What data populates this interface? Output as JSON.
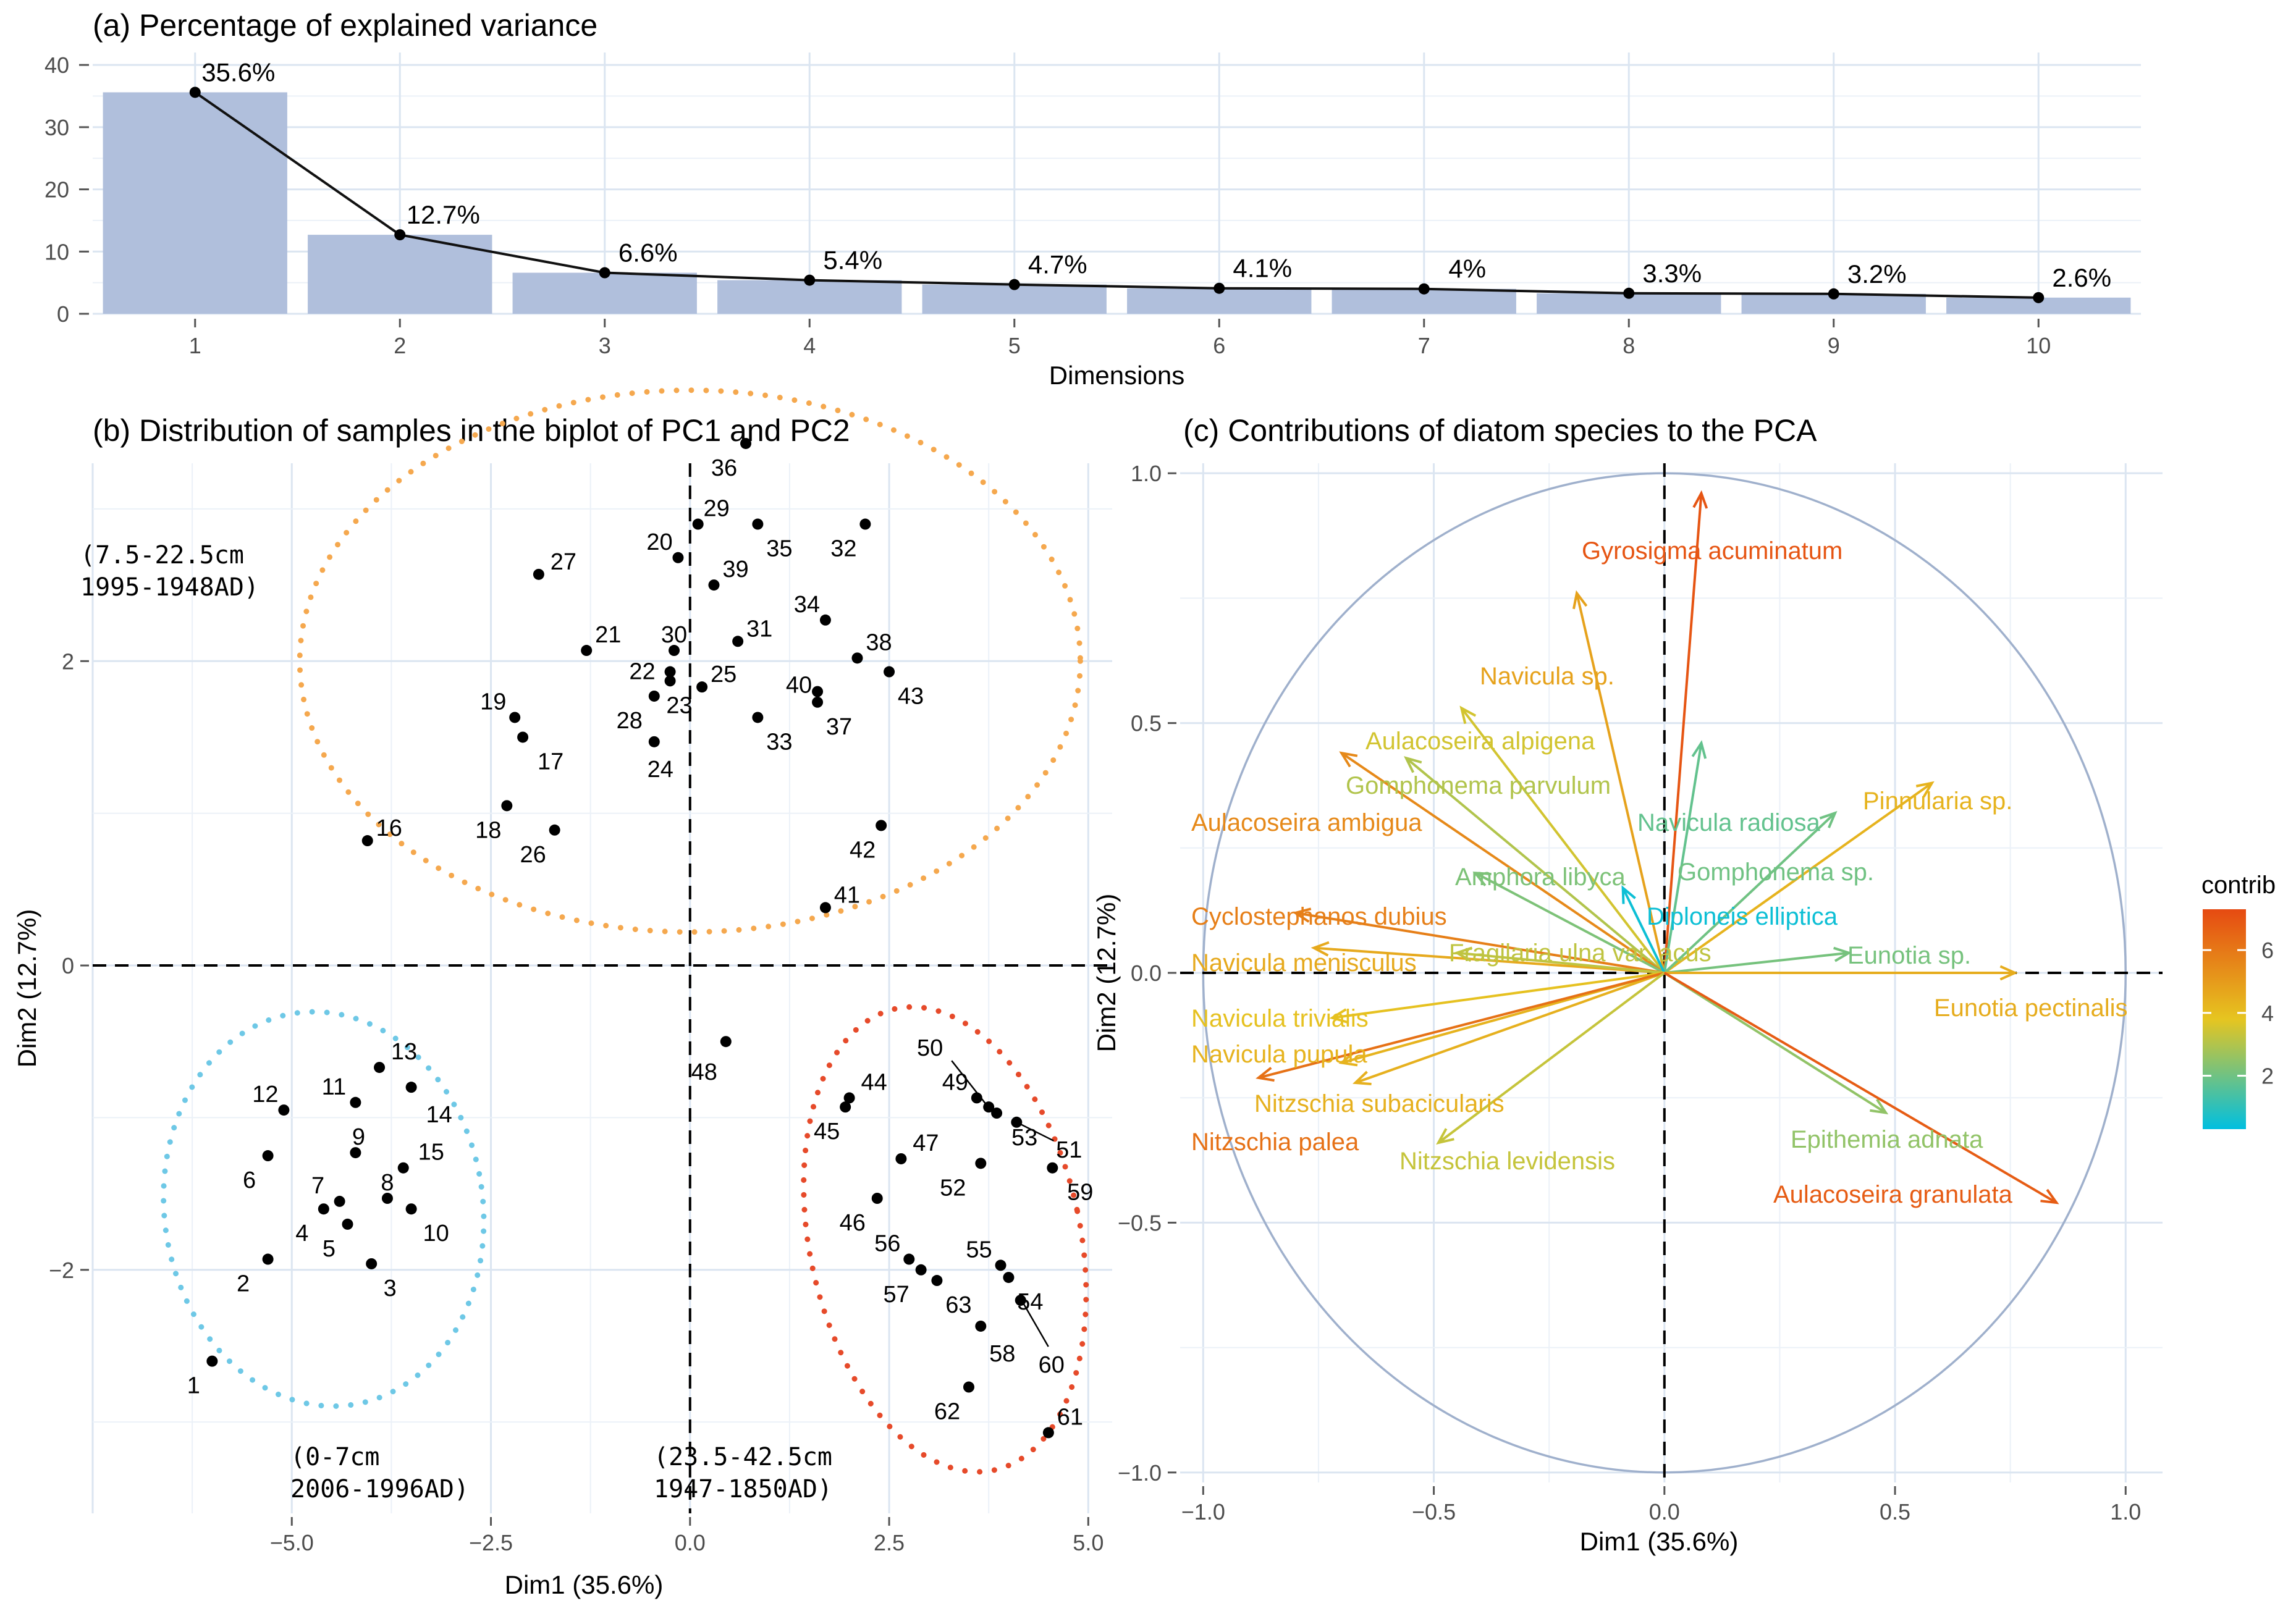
{
  "panels": {
    "a_title": "(a) Percentage of explained variance",
    "b_title": "(b) Distribution of samples in the biplot of PC1 and PC2",
    "c_title": "(c) Contributions of diatom species to the PCA"
  },
  "chart_data": [
    {
      "type": "bar",
      "panel": "a",
      "title": "(a) Percentage of explained variance",
      "xlabel": "Dimensions",
      "ylabel": "",
      "categories": [
        "1",
        "2",
        "3",
        "4",
        "5",
        "6",
        "7",
        "8",
        "9",
        "10"
      ],
      "values": [
        35.6,
        12.7,
        6.6,
        5.4,
        4.7,
        4.1,
        4.0,
        3.3,
        3.2,
        2.6
      ],
      "labels": [
        "35.6%",
        "12.7%",
        "6.6%",
        "5.4%",
        "4.7%",
        "4.1%",
        "4%",
        "3.3%",
        "3.2%",
        "2.6%"
      ],
      "ylim": [
        0,
        42
      ],
      "yticks": [
        "0",
        "10",
        "20",
        "30",
        "40"
      ],
      "line_overlay": true,
      "bar_color": "#b0bfdc",
      "grid": true
    },
    {
      "type": "scatter",
      "panel": "b",
      "title": "(b) Distribution of samples in the biplot of PC1 and PC2",
      "xlabel": "Dim1 (35.6%)",
      "ylabel": "Dim2 (12.7%)",
      "xlim": [
        -7.5,
        5.3
      ],
      "ylim": [
        -3.6,
        3.3
      ],
      "xticks": [
        "-5.0",
        "-2.5",
        "0.0",
        "2.5",
        "5.0"
      ],
      "yticks": [
        "-2",
        "0",
        "2"
      ],
      "points": [
        {
          "id": "1",
          "x": -6.0,
          "y": -2.6
        },
        {
          "id": "2",
          "x": -5.3,
          "y": -1.93
        },
        {
          "id": "3",
          "x": -4.0,
          "y": -1.96
        },
        {
          "id": "4",
          "x": -4.6,
          "y": -1.6
        },
        {
          "id": "5",
          "x": -4.3,
          "y": -1.7
        },
        {
          "id": "6",
          "x": -5.3,
          "y": -1.25
        },
        {
          "id": "7",
          "x": -4.4,
          "y": -1.55
        },
        {
          "id": "8",
          "x": -3.8,
          "y": -1.53
        },
        {
          "id": "9",
          "x": -4.2,
          "y": -1.23
        },
        {
          "id": "10",
          "x": -3.5,
          "y": -1.6
        },
        {
          "id": "11",
          "x": -4.2,
          "y": -0.9
        },
        {
          "id": "12",
          "x": -5.1,
          "y": -0.95
        },
        {
          "id": "13",
          "x": -3.9,
          "y": -0.67
        },
        {
          "id": "14",
          "x": -3.5,
          "y": -0.8
        },
        {
          "id": "15",
          "x": -3.6,
          "y": -1.33
        },
        {
          "id": "16",
          "x": -4.05,
          "y": 0.82
        },
        {
          "id": "17",
          "x": -2.1,
          "y": 1.5
        },
        {
          "id": "18",
          "x": -2.3,
          "y": 1.05
        },
        {
          "id": "19",
          "x": -2.2,
          "y": 1.63
        },
        {
          "id": "20",
          "x": -0.15,
          "y": 2.68
        },
        {
          "id": "21",
          "x": -1.3,
          "y": 2.07
        },
        {
          "id": "22",
          "x": -0.25,
          "y": 1.93
        },
        {
          "id": "23",
          "x": -0.25,
          "y": 1.87
        },
        {
          "id": "24",
          "x": -0.45,
          "y": 1.47
        },
        {
          "id": "25",
          "x": 0.15,
          "y": 1.83
        },
        {
          "id": "26",
          "x": -1.7,
          "y": 0.89
        },
        {
          "id": "27",
          "x": -1.9,
          "y": 2.57
        },
        {
          "id": "28",
          "x": -0.45,
          "y": 1.77
        },
        {
          "id": "29",
          "x": 0.1,
          "y": 2.9
        },
        {
          "id": "30",
          "x": -0.2,
          "y": 2.07
        },
        {
          "id": "31",
          "x": 0.6,
          "y": 2.13
        },
        {
          "id": "32",
          "x": 2.2,
          "y": 2.9
        },
        {
          "id": "33",
          "x": 0.85,
          "y": 1.63
        },
        {
          "id": "34",
          "x": 1.7,
          "y": 2.27
        },
        {
          "id": "35",
          "x": 0.85,
          "y": 2.9
        },
        {
          "id": "36",
          "x": 0.7,
          "y": 3.43
        },
        {
          "id": "37",
          "x": 1.6,
          "y": 1.73
        },
        {
          "id": "38",
          "x": 2.1,
          "y": 2.02
        },
        {
          "id": "39",
          "x": 0.3,
          "y": 2.5
        },
        {
          "id": "40",
          "x": 1.6,
          "y": 1.8
        },
        {
          "id": "41",
          "x": 1.7,
          "y": 0.38
        },
        {
          "id": "42",
          "x": 2.4,
          "y": 0.92
        },
        {
          "id": "43",
          "x": 2.5,
          "y": 1.93
        },
        {
          "id": "44",
          "x": 2.0,
          "y": -0.87
        },
        {
          "id": "45",
          "x": 1.95,
          "y": -0.93
        },
        {
          "id": "46",
          "x": 2.35,
          "y": -1.53
        },
        {
          "id": "47",
          "x": 2.65,
          "y": -1.27
        },
        {
          "id": "48",
          "x": 0.45,
          "y": -0.5
        },
        {
          "id": "49",
          "x": 3.6,
          "y": -0.87
        },
        {
          "id": "50",
          "x": 3.75,
          "y": -0.93
        },
        {
          "id": "51",
          "x": 4.1,
          "y": -1.03
        },
        {
          "id": "52",
          "x": 3.65,
          "y": -1.3
        },
        {
          "id": "53",
          "x": 3.85,
          "y": -0.97
        },
        {
          "id": "54",
          "x": 4.0,
          "y": -2.05
        },
        {
          "id": "55",
          "x": 3.9,
          "y": -1.97
        },
        {
          "id": "56",
          "x": 2.75,
          "y": -1.93
        },
        {
          "id": "57",
          "x": 2.9,
          "y": -2.0
        },
        {
          "id": "58",
          "x": 3.65,
          "y": -2.37
        },
        {
          "id": "59",
          "x": 4.55,
          "y": -1.33
        },
        {
          "id": "60",
          "x": 4.15,
          "y": -2.2
        },
        {
          "id": "61",
          "x": 4.5,
          "y": -3.07
        },
        {
          "id": "62",
          "x": 3.5,
          "y": -2.77
        },
        {
          "id": "63",
          "x": 3.1,
          "y": -2.07
        }
      ],
      "groups": [
        {
          "name": "0-7cm 2006-1996 AD",
          "line1": "(0-7cm",
          "line2": "2006-1996AD)",
          "color": "#6ec8e6"
        },
        {
          "name": "7.5-22.5cm 1995-1948 AD",
          "line1": "(7.5-22.5cm",
          "line2": "1995-1948AD)",
          "color": "#f5a84e"
        },
        {
          "name": "23.5-42.5cm 1947-1850 AD",
          "line1": "(23.5-42.5cm",
          "line2": "1947-1850AD)",
          "color": "#e64a2a"
        }
      ]
    },
    {
      "type": "vector",
      "panel": "c",
      "title": "(c) Contributions of diatom species to the PCA",
      "xlabel": "Dim1 (35.6%)",
      "ylabel": "Dim2 (12.7%)",
      "xlim": [
        -1.05,
        1.08
      ],
      "ylim": [
        -1.02,
        1.02
      ],
      "xticks": [
        "-1.0",
        "-0.5",
        "0.0",
        "0.5",
        "1.0"
      ],
      "yticks": [
        "-1.0",
        "-0.5",
        "0.0",
        "0.5",
        "1.0"
      ],
      "legend_title": "contrib",
      "legend_ticks": [
        "2",
        "4",
        "6"
      ],
      "color_scale": [
        "#00bfe0",
        "#e6c520",
        "#e64a12"
      ],
      "species": [
        {
          "name": "Gyrosigma acuminatum",
          "x": 0.08,
          "y": 0.96,
          "contrib": 7.0
        },
        {
          "name": "Navicula  sp.",
          "x": -0.19,
          "y": 0.76,
          "contrib": 4.8
        },
        {
          "name": "Aulacoseira alpigena",
          "x": -0.44,
          "y": 0.53,
          "contrib": 3.5
        },
        {
          "name": "Gomphonema parvulum",
          "x": -0.56,
          "y": 0.43,
          "contrib": 3.0
        },
        {
          "name": "Navicula radiosa",
          "x": 0.08,
          "y": 0.46,
          "contrib": 1.8
        },
        {
          "name": "Pinnularia  sp.",
          "x": 0.58,
          "y": 0.38,
          "contrib": 4.3
        },
        {
          "name": "Aulacoseira ambigua",
          "x": -0.7,
          "y": 0.44,
          "contrib": 5.5
        },
        {
          "name": "Amphora libyca",
          "x": -0.41,
          "y": 0.2,
          "contrib": 2.2
        },
        {
          "name": "Gomphonema sp.",
          "x": 0.37,
          "y": 0.32,
          "contrib": 2.0
        },
        {
          "name": "Cyclostephanos dubius",
          "x": -0.8,
          "y": 0.12,
          "contrib": 5.8
        },
        {
          "name": "Diploneis elliptica",
          "x": -0.09,
          "y": 0.17,
          "contrib": 0.5
        },
        {
          "name": "Navicula menisculus",
          "x": -0.76,
          "y": 0.05,
          "contrib": 4.6
        },
        {
          "name": "Fragilaria ulna var. acus",
          "x": -0.45,
          "y": 0.04,
          "contrib": 3.2
        },
        {
          "name": "Eunotia  sp.",
          "x": 0.4,
          "y": 0.04,
          "contrib": 2.1
        },
        {
          "name": "Eunotia pectinalis",
          "x": 0.76,
          "y": 0.0,
          "contrib": 4.5
        },
        {
          "name": "Navicula trivialis",
          "x": -0.72,
          "y": -0.09,
          "contrib": 3.9
        },
        {
          "name": "Navicula pupula",
          "x": -0.7,
          "y": -0.18,
          "contrib": 4.3
        },
        {
          "name": "Nitzschia subacicularis",
          "x": -0.67,
          "y": -0.22,
          "contrib": 4.4
        },
        {
          "name": "Nitzschia palea",
          "x": -0.88,
          "y": -0.21,
          "contrib": 6.2
        },
        {
          "name": "Nitzschia levidensis",
          "x": -0.49,
          "y": -0.34,
          "contrib": 3.3
        },
        {
          "name": "Epithemia adnata",
          "x": 0.48,
          "y": -0.28,
          "contrib": 2.5
        },
        {
          "name": "Aulacoseira granulata",
          "x": 0.85,
          "y": -0.46,
          "contrib": 6.8
        }
      ],
      "display_names": {
        "Fragilaria ulna var. acus": "Fragilaria ulna var. acus"
      },
      "unit_circle": true
    }
  ]
}
